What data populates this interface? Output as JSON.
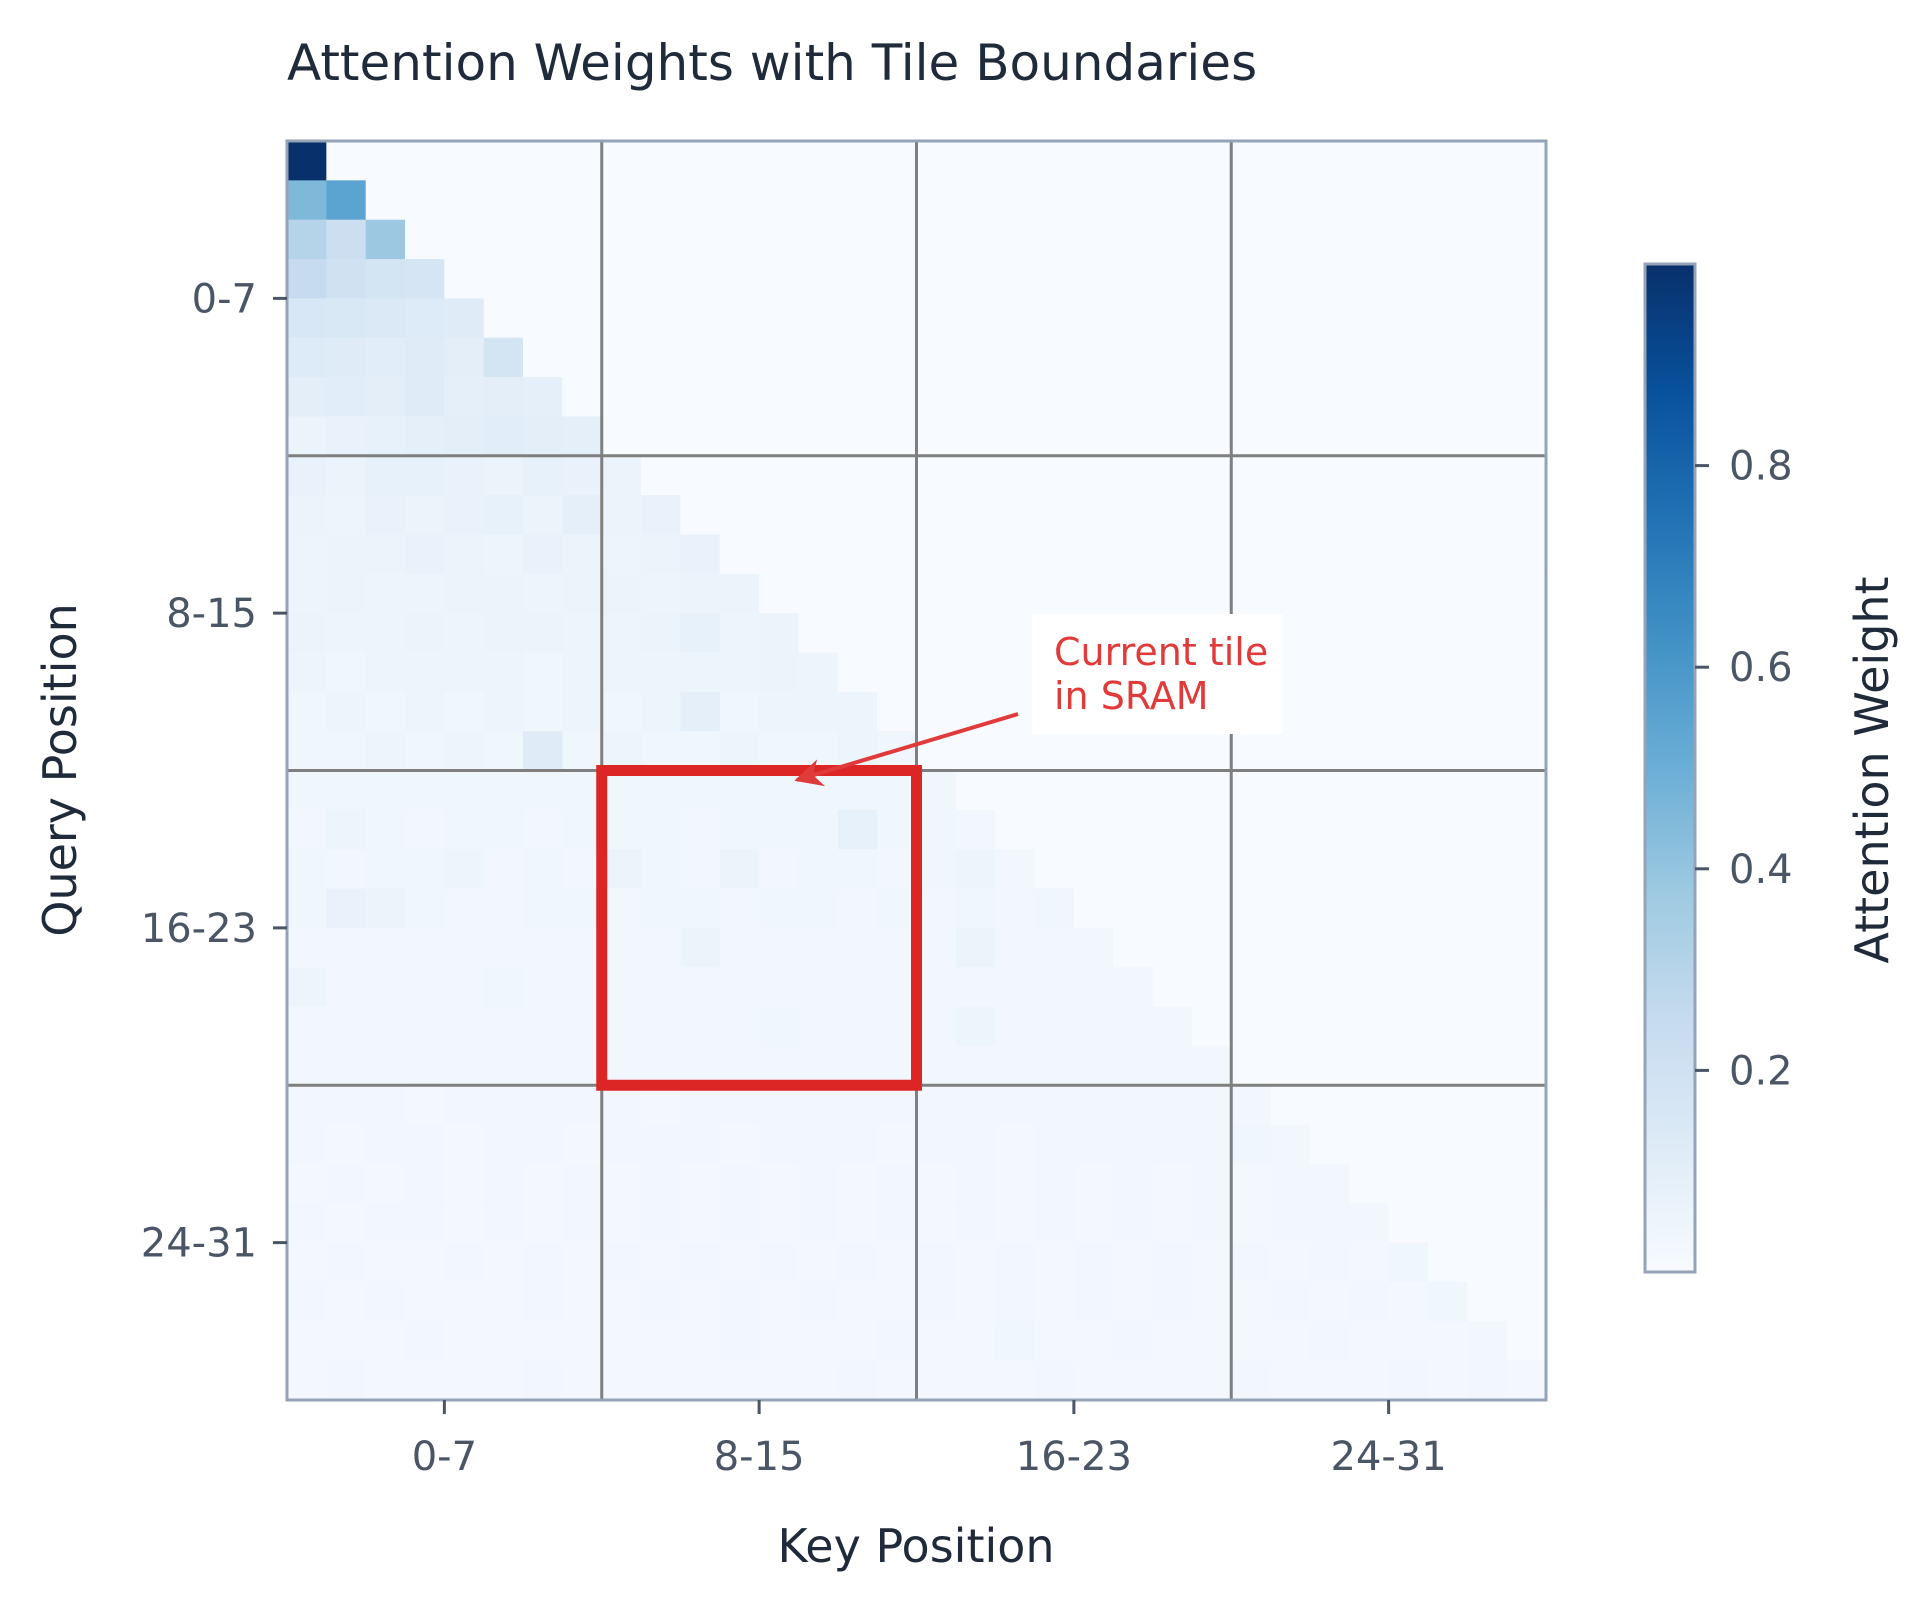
{
  "chart_data": {
    "type": "heatmap",
    "title": "Attention Weights with Tile Boundaries",
    "xlabel": "Key Position",
    "ylabel": "Query Position",
    "colorbar_label": "Attention Weight",
    "colormap": "Blues",
    "vmin": 0.0,
    "vmax": 1.0,
    "colorbar_ticks": [
      "0.2",
      "0.4",
      "0.6",
      "0.8"
    ],
    "colorbar_tick_values": [
      0.2,
      0.4,
      0.6,
      0.8
    ],
    "x_tick_labels": [
      "0-7",
      "8-15",
      "16-23",
      "24-31"
    ],
    "y_tick_labels": [
      "0-7",
      "8-15",
      "16-23",
      "24-31"
    ],
    "size": 32,
    "tile_size": 8,
    "mask": "causal (upper triangle above diagonal is 0)",
    "highlight_tile": {
      "query_block": "16-23",
      "key_block": "8-15"
    },
    "annotation": {
      "line1": "Current tile",
      "line2": "in SRAM"
    },
    "rows": [
      [
        1.0
      ],
      [
        0.45,
        0.55
      ],
      [
        0.3,
        0.22,
        0.38
      ],
      [
        0.25,
        0.2,
        0.18,
        0.17
      ],
      [
        0.16,
        0.15,
        0.14,
        0.13,
        0.12
      ],
      [
        0.13,
        0.12,
        0.11,
        0.12,
        0.1,
        0.18
      ],
      [
        0.1,
        0.11,
        0.1,
        0.12,
        0.09,
        0.1,
        0.09
      ],
      [
        0.06,
        0.07,
        0.08,
        0.09,
        0.1,
        0.11,
        0.1,
        0.09
      ],
      [
        0.07,
        0.06,
        0.08,
        0.08,
        0.07,
        0.06,
        0.08,
        0.07,
        0.06
      ],
      [
        0.06,
        0.05,
        0.07,
        0.06,
        0.07,
        0.08,
        0.06,
        0.09,
        0.06,
        0.07
      ],
      [
        0.05,
        0.06,
        0.06,
        0.07,
        0.06,
        0.05,
        0.07,
        0.06,
        0.05,
        0.06,
        0.07
      ],
      [
        0.05,
        0.06,
        0.05,
        0.05,
        0.06,
        0.06,
        0.05,
        0.06,
        0.06,
        0.05,
        0.06,
        0.06
      ],
      [
        0.06,
        0.05,
        0.05,
        0.06,
        0.05,
        0.06,
        0.06,
        0.05,
        0.05,
        0.06,
        0.08,
        0.05,
        0.06
      ],
      [
        0.05,
        0.04,
        0.05,
        0.05,
        0.05,
        0.05,
        0.04,
        0.05,
        0.05,
        0.05,
        0.05,
        0.05,
        0.06,
        0.05
      ],
      [
        0.04,
        0.05,
        0.04,
        0.05,
        0.04,
        0.05,
        0.04,
        0.05,
        0.04,
        0.05,
        0.09,
        0.04,
        0.05,
        0.05,
        0.05
      ],
      [
        0.04,
        0.04,
        0.05,
        0.04,
        0.05,
        0.04,
        0.12,
        0.04,
        0.05,
        0.04,
        0.04,
        0.05,
        0.04,
        0.04,
        0.05,
        0.04
      ],
      [
        0.04,
        0.04,
        0.04,
        0.04,
        0.04,
        0.04,
        0.04,
        0.04,
        0.04,
        0.04,
        0.04,
        0.04,
        0.04,
        0.04,
        0.04,
        0.04,
        0.04
      ],
      [
        0.03,
        0.05,
        0.04,
        0.03,
        0.04,
        0.04,
        0.03,
        0.04,
        0.04,
        0.04,
        0.03,
        0.04,
        0.04,
        0.04,
        0.08,
        0.04,
        0.04,
        0.03
      ],
      [
        0.04,
        0.03,
        0.04,
        0.04,
        0.05,
        0.03,
        0.04,
        0.03,
        0.06,
        0.04,
        0.03,
        0.06,
        0.03,
        0.04,
        0.04,
        0.03,
        0.04,
        0.05,
        0.03
      ],
      [
        0.04,
        0.07,
        0.06,
        0.04,
        0.03,
        0.03,
        0.04,
        0.04,
        0.03,
        0.04,
        0.04,
        0.03,
        0.04,
        0.04,
        0.03,
        0.04,
        0.03,
        0.04,
        0.03,
        0.04
      ],
      [
        0.03,
        0.03,
        0.03,
        0.03,
        0.03,
        0.03,
        0.03,
        0.03,
        0.03,
        0.03,
        0.06,
        0.03,
        0.03,
        0.03,
        0.03,
        0.03,
        0.03,
        0.06,
        0.03,
        0.03,
        0.03
      ],
      [
        0.05,
        0.03,
        0.03,
        0.03,
        0.03,
        0.04,
        0.03,
        0.03,
        0.03,
        0.03,
        0.03,
        0.03,
        0.03,
        0.03,
        0.03,
        0.03,
        0.03,
        0.03,
        0.03,
        0.03,
        0.03,
        0.03
      ],
      [
        0.03,
        0.03,
        0.03,
        0.03,
        0.03,
        0.03,
        0.03,
        0.03,
        0.03,
        0.03,
        0.03,
        0.03,
        0.04,
        0.03,
        0.03,
        0.03,
        0.03,
        0.05,
        0.03,
        0.03,
        0.03,
        0.03,
        0.03
      ],
      [
        0.03,
        0.03,
        0.03,
        0.03,
        0.03,
        0.03,
        0.03,
        0.03,
        0.03,
        0.03,
        0.03,
        0.03,
        0.03,
        0.03,
        0.03,
        0.03,
        0.03,
        0.03,
        0.03,
        0.03,
        0.03,
        0.03,
        0.03,
        0.03
      ],
      [
        0.03,
        0.03,
        0.03,
        0.02,
        0.03,
        0.03,
        0.03,
        0.03,
        0.03,
        0.02,
        0.03,
        0.03,
        0.03,
        0.03,
        0.03,
        0.03,
        0.03,
        0.03,
        0.03,
        0.03,
        0.03,
        0.03,
        0.03,
        0.03,
        0.03
      ],
      [
        0.03,
        0.02,
        0.03,
        0.03,
        0.02,
        0.03,
        0.03,
        0.02,
        0.03,
        0.03,
        0.03,
        0.02,
        0.03,
        0.03,
        0.03,
        0.02,
        0.03,
        0.03,
        0.02,
        0.03,
        0.03,
        0.03,
        0.03,
        0.03,
        0.04,
        0.03
      ],
      [
        0.02,
        0.03,
        0.02,
        0.03,
        0.02,
        0.03,
        0.02,
        0.03,
        0.02,
        0.03,
        0.02,
        0.03,
        0.02,
        0.03,
        0.02,
        0.03,
        0.02,
        0.03,
        0.02,
        0.03,
        0.02,
        0.03,
        0.02,
        0.03,
        0.02,
        0.03,
        0.03
      ],
      [
        0.03,
        0.02,
        0.03,
        0.03,
        0.02,
        0.03,
        0.02,
        0.03,
        0.02,
        0.03,
        0.02,
        0.03,
        0.02,
        0.03,
        0.02,
        0.03,
        0.02,
        0.03,
        0.02,
        0.03,
        0.02,
        0.03,
        0.02,
        0.03,
        0.02,
        0.03,
        0.03,
        0.03
      ],
      [
        0.02,
        0.03,
        0.02,
        0.02,
        0.03,
        0.02,
        0.03,
        0.02,
        0.03,
        0.02,
        0.03,
        0.02,
        0.03,
        0.02,
        0.03,
        0.02,
        0.03,
        0.02,
        0.03,
        0.02,
        0.03,
        0.02,
        0.03,
        0.02,
        0.03,
        0.02,
        0.03,
        0.02,
        0.04
      ],
      [
        0.03,
        0.02,
        0.03,
        0.02,
        0.02,
        0.02,
        0.03,
        0.02,
        0.02,
        0.03,
        0.02,
        0.03,
        0.02,
        0.03,
        0.02,
        0.02,
        0.03,
        0.02,
        0.03,
        0.02,
        0.03,
        0.02,
        0.03,
        0.02,
        0.02,
        0.03,
        0.02,
        0.03,
        0.02,
        0.04
      ],
      [
        0.02,
        0.02,
        0.02,
        0.03,
        0.02,
        0.02,
        0.02,
        0.02,
        0.02,
        0.02,
        0.02,
        0.03,
        0.02,
        0.02,
        0.02,
        0.03,
        0.02,
        0.02,
        0.04,
        0.02,
        0.02,
        0.03,
        0.02,
        0.02,
        0.02,
        0.02,
        0.03,
        0.02,
        0.02,
        0.02,
        0.03
      ],
      [
        0.02,
        0.03,
        0.02,
        0.02,
        0.02,
        0.02,
        0.03,
        0.02,
        0.02,
        0.02,
        0.02,
        0.02,
        0.02,
        0.02,
        0.03,
        0.02,
        0.02,
        0.02,
        0.02,
        0.03,
        0.02,
        0.02,
        0.02,
        0.02,
        0.03,
        0.02,
        0.02,
        0.02,
        0.03,
        0.02,
        0.03,
        0.02
      ]
    ]
  },
  "colors": {
    "tile_grid": "#7f7f7f",
    "highlight": "#dc2626",
    "frame": "#94a3b8",
    "text": "#1f2a3a",
    "tick_text": "#4a5566",
    "cmap_stops": [
      "#f7fbff",
      "#deebf7",
      "#c6dbef",
      "#9ecae1",
      "#6baed6",
      "#4292c6",
      "#2171b5",
      "#08519c",
      "#08306b"
    ]
  }
}
